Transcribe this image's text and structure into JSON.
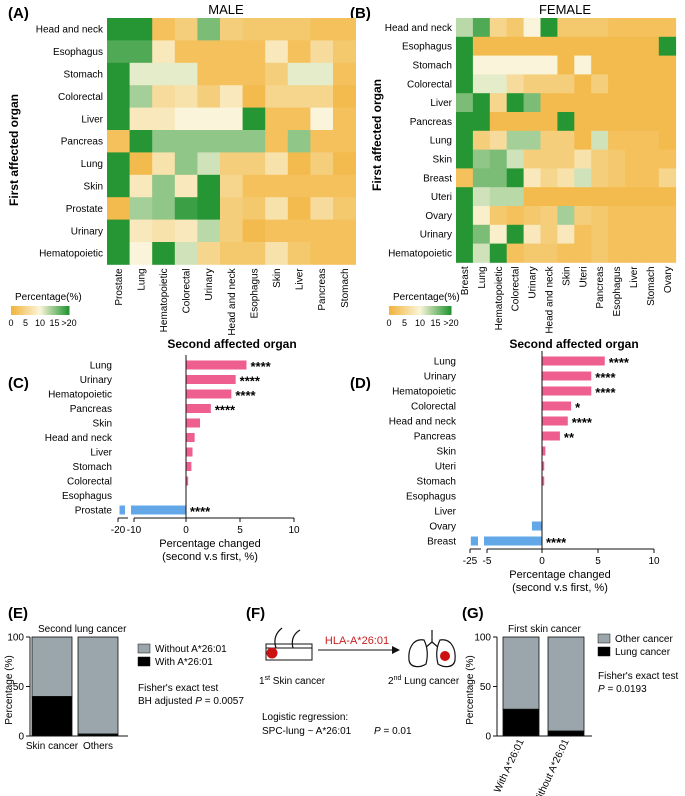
{
  "panel_letters": {
    "A": "(A)",
    "B": "(B)",
    "C": "(C)",
    "D": "(D)",
    "E": "(E)",
    "F": "(F)",
    "G": "(G)"
  },
  "colors": {
    "pink": "#ee5e8e",
    "blue": "#62a8e8",
    "gray": "#9aa6ab",
    "black": "#000000",
    "red_text": "#c81e1e",
    "dot_red": "#cc1111"
  },
  "chart_data": [
    {
      "id": "A",
      "type": "heatmap",
      "title": "MALE",
      "ylabel": "First affected organ",
      "xlabel": "Second affected organ",
      "rows": [
        "Head and neck",
        "Esophagus",
        "Stomach",
        "Colorectal",
        "Liver",
        "Pancreas",
        "Lung",
        "Skin",
        "Prostate",
        "Urinary",
        "Hematopoietic"
      ],
      "columns": [
        "Prostate",
        "Lung",
        "Hematopoietic",
        "Colorectal",
        "Urinary",
        "Head and neck",
        "Esophagus",
        "Skin",
        "Liver",
        "Pancreas",
        "Stomach"
      ],
      "values": [
        [
          20,
          20,
          2,
          4,
          16,
          4,
          3,
          3,
          3,
          2,
          2
        ],
        [
          18,
          18,
          8,
          2,
          2,
          2,
          2,
          8,
          2,
          6,
          3
        ],
        [
          20,
          11,
          11,
          11,
          2,
          2,
          2,
          4,
          11,
          11,
          2
        ],
        [
          20,
          14,
          6,
          7,
          4,
          8,
          1,
          5,
          5,
          5,
          1
        ],
        [
          20,
          8,
          8,
          10,
          10,
          10,
          20,
          2,
          2,
          10,
          2
        ],
        [
          2,
          20,
          15,
          15,
          15,
          15,
          15,
          2,
          15,
          2,
          2
        ],
        [
          20,
          1,
          7,
          15,
          12,
          4,
          4,
          7,
          1,
          4,
          1
        ],
        [
          20,
          8,
          15,
          8,
          20,
          5,
          2,
          2,
          2,
          2,
          2
        ],
        [
          1,
          14,
          15,
          19,
          20,
          4,
          3,
          7,
          1,
          6,
          3
        ],
        [
          20,
          8,
          7,
          8,
          13,
          4,
          1,
          2,
          2,
          2,
          2
        ],
        [
          20,
          10,
          20,
          12,
          5,
          3,
          3,
          7,
          3,
          2,
          2
        ]
      ],
      "legend": {
        "title": "Percentage(%)",
        "ticks": [
          "0",
          "5",
          "10",
          "15",
          ">20"
        ]
      }
    },
    {
      "id": "B",
      "type": "heatmap",
      "title": "FEMALE",
      "ylabel": "First affected organ",
      "xlabel": "Second affected organ",
      "rows": [
        "Head and neck",
        "Esophagus",
        "Stomach",
        "Colorectal",
        "Liver",
        "Pancreas",
        "Lung",
        "Skin",
        "Breast",
        "Uteri",
        "Ovary",
        "Urinary",
        "Hematopoietic"
      ],
      "columns": [
        "Breast",
        "Lung",
        "Hematopoietic",
        "Colorectal",
        "Urinary",
        "Head and neck",
        "Skin",
        "Uteri",
        "Pancreas",
        "Esophagus",
        "Liver",
        "Stomach",
        "Ovary"
      ],
      "values": [
        [
          13,
          18,
          5,
          3,
          10,
          20,
          3,
          3,
          3,
          2,
          2,
          2,
          2
        ],
        [
          20,
          1,
          1,
          1,
          1,
          1,
          1,
          1,
          1,
          1,
          1,
          1,
          20
        ],
        [
          20,
          10,
          10,
          10,
          10,
          10,
          1,
          10,
          1,
          1,
          1,
          1,
          1
        ],
        [
          20,
          11,
          11,
          6,
          4,
          4,
          4,
          1,
          4,
          1,
          1,
          1,
          1
        ],
        [
          16,
          20,
          5,
          20,
          16,
          1,
          1,
          1,
          1,
          1,
          1,
          1,
          1
        ],
        [
          20,
          20,
          1,
          1,
          1,
          1,
          20,
          1,
          1,
          1,
          1,
          1,
          1
        ],
        [
          20,
          4,
          6,
          14,
          14,
          4,
          4,
          1,
          12,
          2,
          2,
          2,
          1
        ],
        [
          20,
          15,
          16,
          12,
          4,
          4,
          4,
          7,
          4,
          3,
          2,
          2,
          2
        ],
        [
          2,
          16,
          16,
          20,
          8,
          5,
          7,
          12,
          4,
          3,
          2,
          2,
          5
        ],
        [
          20,
          12,
          13,
          13,
          1,
          1,
          1,
          1,
          1,
          1,
          1,
          1,
          1
        ],
        [
          20,
          9,
          3,
          2,
          3,
          4,
          14,
          4,
          3,
          2,
          2,
          2,
          2
        ],
        [
          20,
          16,
          9,
          20,
          8,
          4,
          8,
          2,
          3,
          2,
          2,
          2,
          2
        ],
        [
          20,
          12,
          20,
          2,
          3,
          3,
          2,
          2,
          3,
          2,
          2,
          2,
          2
        ]
      ],
      "legend": {
        "title": "Percentage(%)",
        "ticks": [
          "0",
          "5",
          "10",
          "15",
          ">20"
        ]
      }
    },
    {
      "id": "C",
      "type": "bar",
      "orientation": "horizontal",
      "categories": [
        "Lung",
        "Urinary",
        "Hematopoietic",
        "Pancreas",
        "Skin",
        "Head and neck",
        "Liver",
        "Stomach",
        "Colorectal",
        "Esophagus",
        "Prostate"
      ],
      "values": [
        5.6,
        4.6,
        4.2,
        2.3,
        1.3,
        0.8,
        0.6,
        0.5,
        0.2,
        0.0,
        -18.5
      ],
      "significance": [
        "****",
        "****",
        "****",
        "****",
        "",
        "",
        "",
        "",
        "",
        "",
        "****"
      ],
      "xlabel": "Percentage changed",
      "xlabel2": "(second v.s first, %)",
      "x_ticks": [
        "-20",
        "-10",
        "0",
        "5",
        "10"
      ],
      "axis_break": "between -10 and 0"
    },
    {
      "id": "D",
      "type": "bar",
      "orientation": "horizontal",
      "categories": [
        "Lung",
        "Urinary",
        "Hematopoietic",
        "Colorectal",
        "Head and neck",
        "Pancreas",
        "Skin",
        "Uteri",
        "Stomach",
        "Esophagus",
        "Liver",
        "Ovary",
        "Breast"
      ],
      "values": [
        5.6,
        4.4,
        4.4,
        2.6,
        2.3,
        1.6,
        0.3,
        0.2,
        0.2,
        0.0,
        0.0,
        -0.9,
        -23.5
      ],
      "significance": [
        "****",
        "****",
        "****",
        "*",
        "****",
        "**",
        "",
        "",
        "",
        "",
        "",
        "",
        "****"
      ],
      "xlabel": "Percentage changed",
      "xlabel2": "(second v.s first, %)",
      "x_ticks": [
        "-25",
        "-5",
        "0",
        "5",
        "10"
      ],
      "axis_break": "between -5 and 0"
    },
    {
      "id": "E",
      "type": "bar",
      "stacked": true,
      "title": "Second lung cancer",
      "categories": [
        "Skin cancer",
        "Others"
      ],
      "series": [
        {
          "name": "With A*26:01",
          "values": [
            40,
            2
          ]
        },
        {
          "name": "Without A*26:01",
          "values": [
            60,
            98
          ]
        }
      ],
      "ylabel": "Percentage (%)",
      "ylim": [
        0,
        100
      ],
      "y_ticks": [
        "0",
        "50",
        "100"
      ],
      "stat_line1": "Fisher's exact test",
      "stat_line2_prefix": "BH adjusted ",
      "stat_P": "P",
      "stat_line2_suffix": " = 0.0057"
    },
    {
      "id": "G",
      "type": "bar",
      "stacked": true,
      "title": "First skin cancer",
      "categories": [
        "With A*26:01",
        "Without A*26:01"
      ],
      "series": [
        {
          "name": "Lung cancer",
          "values": [
            27,
            5
          ]
        },
        {
          "name": "Other cancer",
          "values": [
            73,
            95
          ]
        }
      ],
      "ylabel": "Percentage (%)",
      "ylim": [
        0,
        100
      ],
      "y_ticks": [
        "0",
        "50",
        "100"
      ],
      "stat_line1": "Fisher's exact test",
      "stat_P": "P",
      "stat_line2_suffix": " = 0.0193"
    }
  ],
  "panel_F": {
    "hla_label": "HLA-A*26:01",
    "first_num": "1",
    "first_sup": "st",
    "first_text": " Skin cancer",
    "second_num": "2",
    "second_sup": "nd",
    "second_text": " Lung cancer",
    "logit_line1": "Logistic regression:",
    "logit_line2": "SPC-lung ~ A*26:01",
    "logit_P": "P",
    "logit_pval": " = 0.01"
  }
}
